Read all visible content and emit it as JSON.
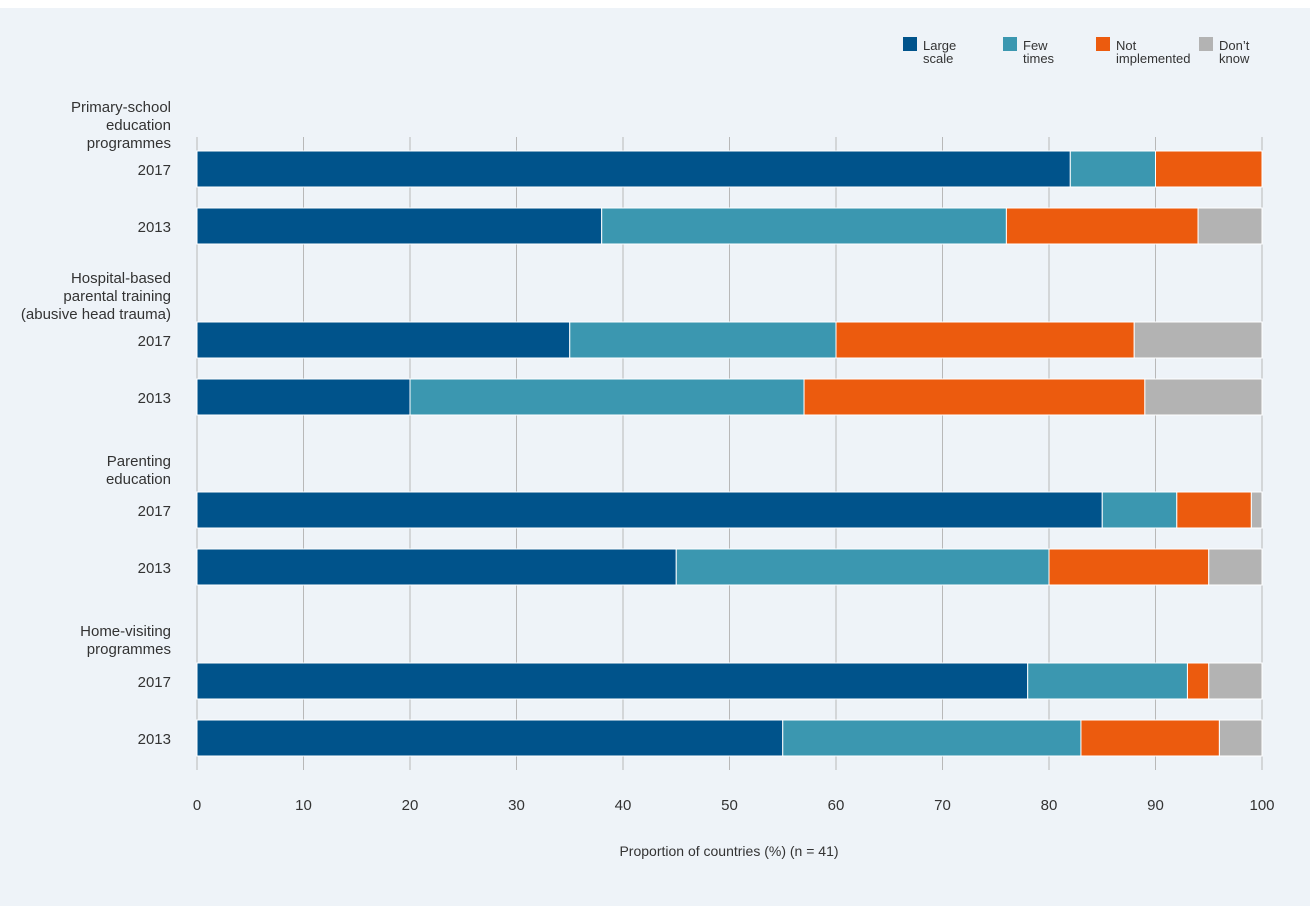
{
  "chart_data": {
    "type": "bar",
    "orientation": "horizontal",
    "stacked": true,
    "xlabel": "Proportion of countries (%) (n = 41)",
    "xlim": [
      0,
      100
    ],
    "xticks": [
      0,
      10,
      20,
      30,
      40,
      50,
      60,
      70,
      80,
      90,
      100
    ],
    "grid": "vertical",
    "legend_position": "top-right",
    "series": [
      {
        "name": "Large scale",
        "lines": [
          "Large",
          "scale"
        ],
        "color": "#00538b"
      },
      {
        "name": "Few times",
        "lines": [
          "Few",
          "times"
        ],
        "color": "#3b97b0"
      },
      {
        "name": "Not implemented",
        "lines": [
          "Not",
          "implemented"
        ],
        "color": "#ec5b0e"
      },
      {
        "name": "Don’t know",
        "lines": [
          "Don’t",
          "know"
        ],
        "color": "#b3b3b3"
      }
    ],
    "groups": [
      {
        "label_lines": [
          "Primary-school",
          "education",
          "programmes"
        ],
        "rows": [
          {
            "year": "2017",
            "values": [
              82,
              8,
              10,
              0
            ]
          },
          {
            "year": "2013",
            "values": [
              38,
              38,
              18,
              6
            ]
          }
        ]
      },
      {
        "label_lines": [
          "Hospital-based",
          "parental training",
          "(abusive head trauma)"
        ],
        "rows": [
          {
            "year": "2017",
            "values": [
              35,
              25,
              28,
              12
            ]
          },
          {
            "year": "2013",
            "values": [
              20,
              37,
              32,
              11
            ]
          }
        ]
      },
      {
        "label_lines": [
          "Parenting",
          "education"
        ],
        "rows": [
          {
            "year": "2017",
            "values": [
              85,
              7,
              7,
              1
            ]
          },
          {
            "year": "2013",
            "values": [
              45,
              35,
              15,
              5
            ]
          }
        ]
      },
      {
        "label_lines": [
          "Home-visiting",
          "programmes"
        ],
        "rows": [
          {
            "year": "2017",
            "values": [
              78,
              15,
              2,
              5
            ]
          },
          {
            "year": "2013",
            "values": [
              55,
              28,
              13,
              4
            ]
          }
        ]
      }
    ]
  }
}
